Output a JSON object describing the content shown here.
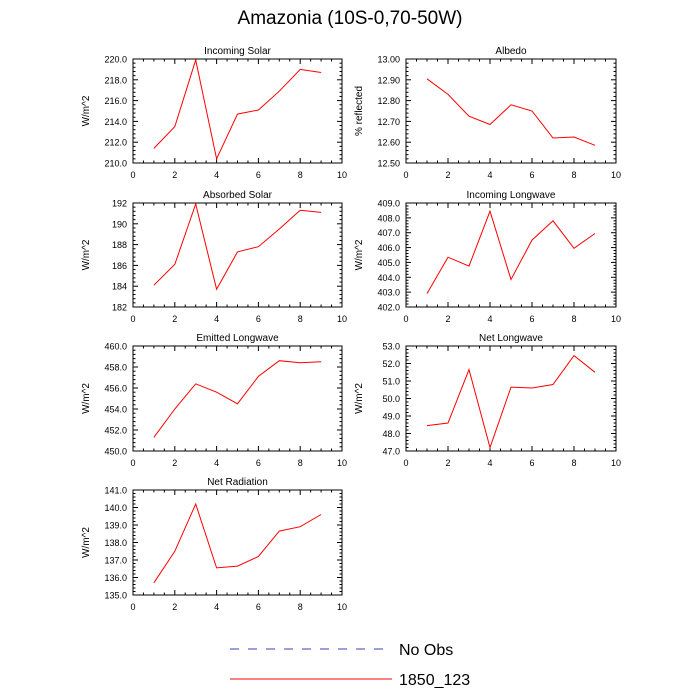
{
  "page_title": "Amazonia (10S-0,70-50W)",
  "legend": {
    "entries": [
      {
        "label": "No Obs",
        "color": "#3c3cb4",
        "style": "dashed"
      },
      {
        "label": "1850_123",
        "color": "#ff0000",
        "style": "solid"
      }
    ]
  },
  "chart_data": [
    {
      "type": "line",
      "title": "Incoming Solar",
      "ylabel": "W/m^2",
      "xlim": [
        0,
        10
      ],
      "ylim": [
        210,
        220
      ],
      "xticks": [
        "0",
        "2",
        "4",
        "6",
        "8",
        "10"
      ],
      "yticks": [
        "210.0",
        "212.0",
        "214.0",
        "216.0",
        "218.0",
        "220.0"
      ],
      "series": [
        {
          "name": "1850_123",
          "color": "#ff0000",
          "x": [
            1,
            2,
            3,
            4,
            5,
            6,
            7,
            8,
            9
          ],
          "values": [
            211.4,
            213.5,
            219.9,
            210.4,
            214.7,
            215.1,
            216.9,
            219.0,
            218.7
          ]
        }
      ]
    },
    {
      "type": "line",
      "title": "Albedo",
      "ylabel": "% reflected",
      "xlim": [
        0,
        10
      ],
      "ylim": [
        12.5,
        13.0
      ],
      "xticks": [
        "0",
        "2",
        "4",
        "6",
        "8",
        "10"
      ],
      "yticks": [
        "12.50",
        "12.60",
        "12.70",
        "12.80",
        "12.90",
        "13.00"
      ],
      "series": [
        {
          "name": "1850_123",
          "color": "#ff0000",
          "x": [
            1,
            2,
            3,
            4,
            5,
            6,
            7,
            8,
            9
          ],
          "values": [
            12.905,
            12.83,
            12.725,
            12.685,
            12.78,
            12.75,
            12.62,
            12.625,
            12.585
          ]
        }
      ]
    },
    {
      "type": "line",
      "title": "Absorbed Solar",
      "ylabel": "W/m^2",
      "xlim": [
        0,
        10
      ],
      "ylim": [
        182,
        192
      ],
      "xticks": [
        "0",
        "2",
        "4",
        "6",
        "8",
        "10"
      ],
      "yticks": [
        "182",
        "184",
        "186",
        "188",
        "190",
        "192"
      ],
      "series": [
        {
          "name": "1850_123",
          "color": "#ff0000",
          "x": [
            1,
            2,
            3,
            4,
            5,
            6,
            7,
            8,
            9
          ],
          "values": [
            184.1,
            186.1,
            191.9,
            183.7,
            187.3,
            187.8,
            189.5,
            191.3,
            191.1
          ]
        }
      ]
    },
    {
      "type": "line",
      "title": "Incoming Longwave",
      "ylabel": "W/m^2",
      "xlim": [
        0,
        10
      ],
      "ylim": [
        402,
        409
      ],
      "xticks": [
        "0",
        "2",
        "4",
        "6",
        "8",
        "10"
      ],
      "yticks": [
        "402.0",
        "403.0",
        "404.0",
        "405.0",
        "406.0",
        "407.0",
        "408.0",
        "409.0"
      ],
      "series": [
        {
          "name": "1850_123",
          "color": "#ff0000",
          "x": [
            1,
            2,
            3,
            4,
            5,
            6,
            7,
            8,
            9
          ],
          "values": [
            402.9,
            405.35,
            404.75,
            408.45,
            403.85,
            406.5,
            407.8,
            405.95,
            406.95
          ]
        }
      ]
    },
    {
      "type": "line",
      "title": "Emitted Longwave",
      "ylabel": "W/m^2",
      "xlim": [
        0,
        10
      ],
      "ylim": [
        450,
        460
      ],
      "xticks": [
        "0",
        "2",
        "4",
        "6",
        "8",
        "10"
      ],
      "yticks": [
        "450.0",
        "452.0",
        "454.0",
        "456.0",
        "458.0",
        "460.0"
      ],
      "series": [
        {
          "name": "1850_123",
          "color": "#ff0000",
          "x": [
            1,
            2,
            3,
            4,
            5,
            6,
            7,
            8,
            9
          ],
          "values": [
            451.3,
            454.0,
            456.4,
            455.6,
            454.5,
            457.1,
            458.6,
            458.4,
            458.5
          ]
        }
      ]
    },
    {
      "type": "line",
      "title": "Net Longwave",
      "ylabel": "W/m^2",
      "xlim": [
        0,
        10
      ],
      "ylim": [
        47,
        53
      ],
      "xticks": [
        "0",
        "2",
        "4",
        "6",
        "8",
        "10"
      ],
      "yticks": [
        "47.0",
        "48.0",
        "49.0",
        "50.0",
        "51.0",
        "52.0",
        "53.0"
      ],
      "series": [
        {
          "name": "1850_123",
          "color": "#ff0000",
          "x": [
            1,
            2,
            3,
            4,
            5,
            6,
            7,
            8,
            9
          ],
          "values": [
            48.45,
            48.6,
            51.65,
            47.2,
            50.65,
            50.6,
            50.8,
            52.45,
            51.5
          ]
        }
      ]
    },
    {
      "type": "line",
      "title": "Net Radiation",
      "ylabel": "W/m^2",
      "xlim": [
        0,
        10
      ],
      "ylim": [
        135,
        141
      ],
      "xticks": [
        "0",
        "2",
        "4",
        "6",
        "8",
        "10"
      ],
      "yticks": [
        "135.0",
        "136.0",
        "137.0",
        "138.0",
        "139.0",
        "140.0",
        "141.0"
      ],
      "series": [
        {
          "name": "1850_123",
          "color": "#ff0000",
          "x": [
            1,
            2,
            3,
            4,
            5,
            6,
            7,
            8,
            9
          ],
          "values": [
            135.7,
            137.5,
            140.2,
            136.55,
            136.65,
            137.2,
            138.65,
            138.9,
            139.6
          ]
        }
      ]
    }
  ]
}
